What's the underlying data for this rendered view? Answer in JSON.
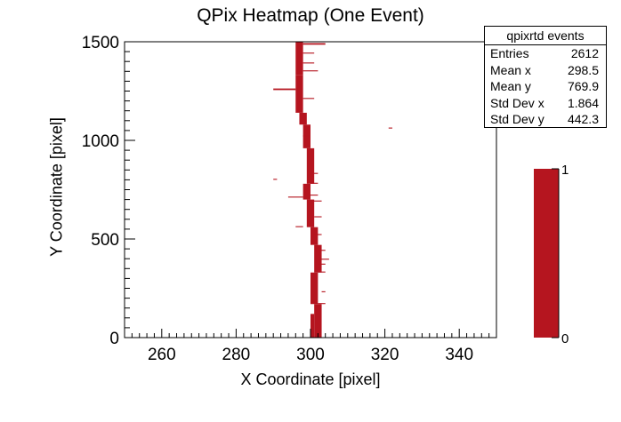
{
  "chart_data": {
    "type": "heatmap",
    "title": "QPix Heatmap (One Event)",
    "xlabel": "X Coordinate [pixel]",
    "ylabel": "Y Coordinate [pixel]",
    "xlim": [
      250,
      350
    ],
    "ylim": [
      0,
      1500
    ],
    "xticks": [
      260,
      280,
      300,
      320,
      340
    ],
    "yticks": [
      0,
      500,
      1000,
      1500
    ],
    "zlim": [
      0,
      1
    ],
    "zticks": [
      0,
      1
    ],
    "grid": false,
    "fill_color": "#b5151f",
    "cells": [
      {
        "x": 296,
        "y": 1330,
        "w": 2,
        "h": 170
      },
      {
        "x": 296,
        "y": 1140,
        "w": 2,
        "h": 190
      },
      {
        "x": 297,
        "y": 1080,
        "w": 2,
        "h": 60
      },
      {
        "x": 298,
        "y": 960,
        "w": 2,
        "h": 120
      },
      {
        "x": 299,
        "y": 780,
        "w": 2,
        "h": 180
      },
      {
        "x": 298,
        "y": 700,
        "w": 2,
        "h": 80
      },
      {
        "x": 299,
        "y": 560,
        "w": 2,
        "h": 140
      },
      {
        "x": 300,
        "y": 470,
        "w": 2,
        "h": 90
      },
      {
        "x": 301,
        "y": 330,
        "w": 2,
        "h": 140
      },
      {
        "x": 300,
        "y": 170,
        "w": 2,
        "h": 160
      },
      {
        "x": 301,
        "y": 0,
        "w": 2,
        "h": 170
      },
      {
        "x": 300,
        "y": 0,
        "w": 1,
        "h": 120
      },
      {
        "x": 298,
        "y": 1485,
        "w": 6,
        "h": 8
      },
      {
        "x": 298,
        "y": 1440,
        "w": 3,
        "h": 5
      },
      {
        "x": 298,
        "y": 1390,
        "w": 3,
        "h": 5
      },
      {
        "x": 298,
        "y": 1350,
        "w": 4,
        "h": 5
      },
      {
        "x": 290,
        "y": 1255,
        "w": 6,
        "h": 8
      },
      {
        "x": 298,
        "y": 1210,
        "w": 3,
        "h": 5
      },
      {
        "x": 298,
        "y": 1020,
        "w": 2,
        "h": 5
      },
      {
        "x": 321,
        "y": 1060,
        "w": 1,
        "h": 5
      },
      {
        "x": 300,
        "y": 830,
        "w": 2,
        "h": 5
      },
      {
        "x": 300,
        "y": 780,
        "w": 2,
        "h": 5
      },
      {
        "x": 294,
        "y": 710,
        "w": 4,
        "h": 5
      },
      {
        "x": 290,
        "y": 800,
        "w": 1,
        "h": 5
      },
      {
        "x": 300,
        "y": 720,
        "w": 2,
        "h": 5
      },
      {
        "x": 300,
        "y": 690,
        "w": 3,
        "h": 5
      },
      {
        "x": 301,
        "y": 610,
        "w": 2,
        "h": 5
      },
      {
        "x": 296,
        "y": 560,
        "w": 2,
        "h": 5
      },
      {
        "x": 301,
        "y": 520,
        "w": 2,
        "h": 5
      },
      {
        "x": 302,
        "y": 440,
        "w": 2,
        "h": 5
      },
      {
        "x": 302,
        "y": 395,
        "w": 3,
        "h": 5
      },
      {
        "x": 302,
        "y": 370,
        "w": 2,
        "h": 5
      },
      {
        "x": 302,
        "y": 330,
        "w": 2,
        "h": 5
      },
      {
        "x": 303,
        "y": 230,
        "w": 1,
        "h": 5
      },
      {
        "x": 302,
        "y": 170,
        "w": 2,
        "h": 5
      }
    ],
    "stats": {
      "name": "qpixrtd events",
      "rows": [
        {
          "label": "Entries",
          "value": "2612"
        },
        {
          "label": "Mean x",
          "value": "298.5"
        },
        {
          "label": "Mean y",
          "value": "769.9"
        },
        {
          "label": "Std Dev x",
          "value": "1.864"
        },
        {
          "label": "Std Dev y",
          "value": "442.3"
        }
      ]
    }
  }
}
